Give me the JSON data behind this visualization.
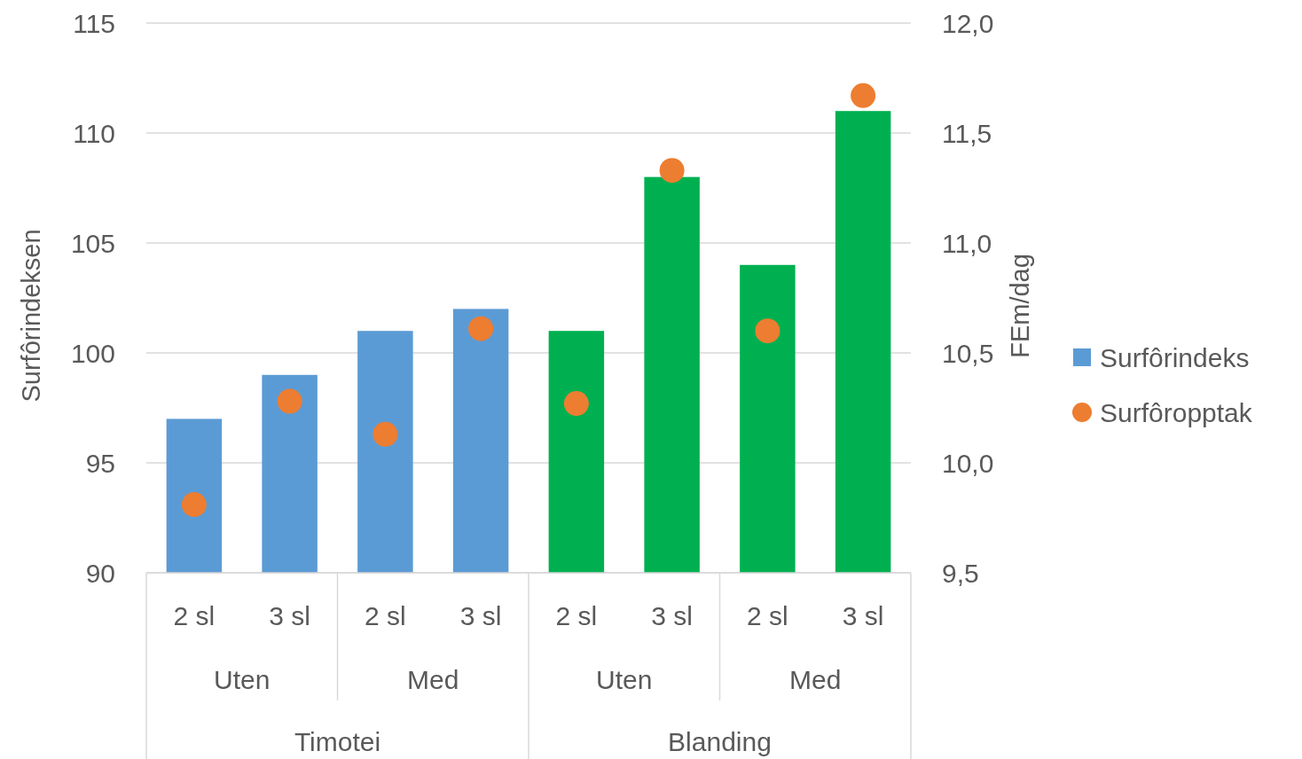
{
  "chart_data": {
    "type": "bar",
    "ylabel": "Surfôrindeksen",
    "y2label": "FEm/dag",
    "categories": [
      "2 sl",
      "3 sl",
      "2 sl",
      "3 sl",
      "2 sl",
      "3 sl",
      "2 sl",
      "3 sl"
    ],
    "annotations": [
      "Uten",
      "Med",
      "Uten",
      "Med",
      "Timotei",
      "Blanding"
    ],
    "series": [
      {
        "name": "Surfôrindeks",
        "color": "#5b9bd5",
        "colors": [
          "#5b9bd5",
          "#5b9bd5",
          "#5b9bd5",
          "#5b9bd5",
          "#00b050",
          "#00b050",
          "#00b050",
          "#00b050"
        ],
        "values": [
          97,
          99,
          101,
          102,
          101,
          108,
          104,
          111
        ]
      },
      {
        "name": "Surfôropptak",
        "type": "scatter",
        "axis": "y2",
        "color": "#ed7d31",
        "marker": "circle",
        "values": [
          9.81,
          10.28,
          10.13,
          10.61,
          10.27,
          11.33,
          10.6,
          11.67
        ]
      }
    ],
    "ylim": [
      90,
      115
    ],
    "yticks": [
      90,
      95,
      100,
      105,
      110,
      115
    ],
    "y2lim": [
      9.5,
      12
    ],
    "y2ticks": [
      {
        "value": 9.5,
        "label": "9,5"
      },
      {
        "value": 10,
        "label": "10,0"
      },
      {
        "value": 10.5,
        "label": "10,5"
      },
      {
        "value": 11,
        "label": "11,0"
      },
      {
        "value": 11.5,
        "label": "11,5"
      },
      {
        "value": 12,
        "label": "12,0"
      }
    ],
    "grid": "y",
    "legend": "right"
  }
}
